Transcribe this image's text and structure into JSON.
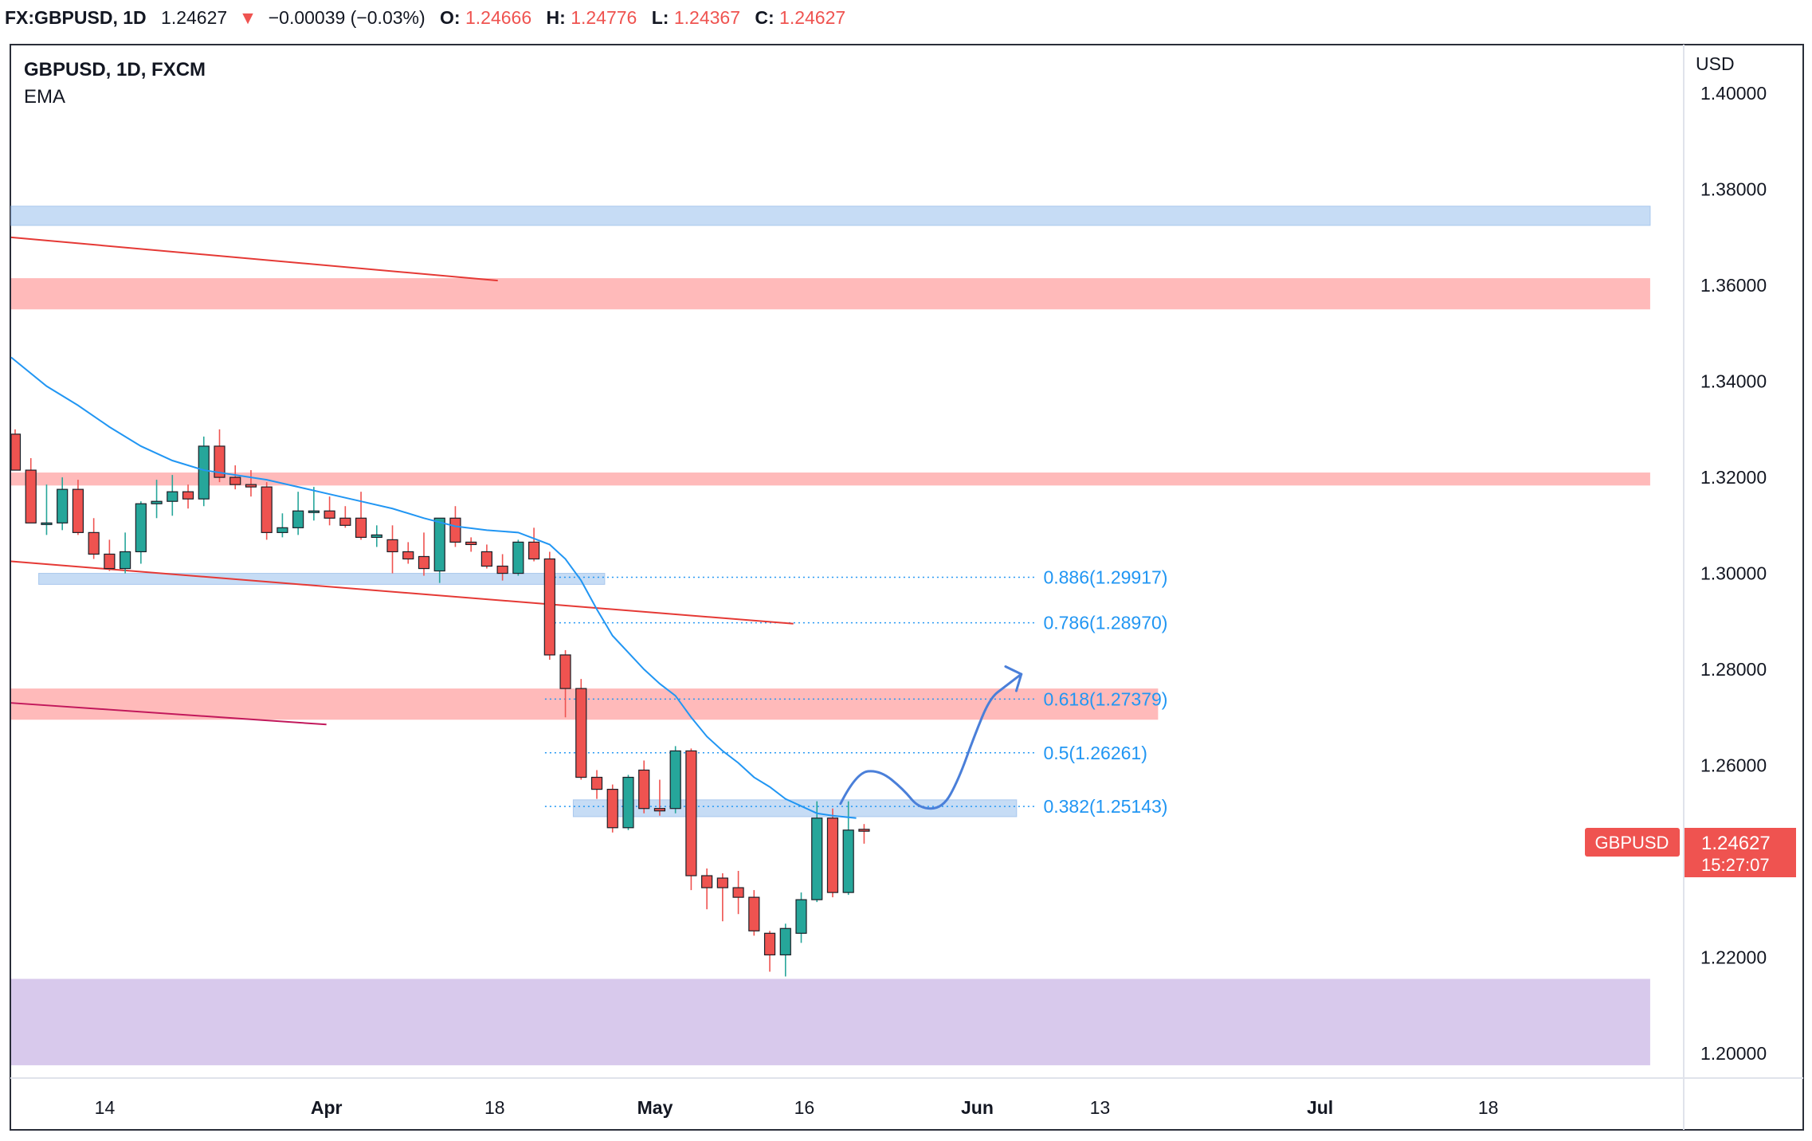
{
  "header": {
    "symbol": "FX:GBPUSD, 1D",
    "last": "1.24627",
    "change_arrow": "▼",
    "change": "−0.00039 (−0.03%)",
    "open_label": "O:",
    "open": "1.24666",
    "high_label": "H:",
    "high": "1.24776",
    "low_label": "L:",
    "low": "1.24367",
    "close_label": "C:",
    "close": "1.24627"
  },
  "legend": {
    "title": "GBPUSD, 1D, FXCM",
    "indicator": "EMA"
  },
  "price_axis": {
    "currency": "USD"
  },
  "price_tag": {
    "symbol": "GBPUSD",
    "price": "1.24627",
    "countdown": "15:27:07"
  },
  "colors": {
    "up": "#26a69a",
    "down": "#ef5350",
    "ema": "#2196f3",
    "support_zone": "#c6dcf5",
    "resistance_zone": "#ffbaba",
    "demand_zone": "#d8c9ec",
    "trendline": "#e53935",
    "trendline2": "#c2185b",
    "projection": "#4a7fd9",
    "fib": "#2196f3"
  },
  "chart_data": {
    "type": "candlestick",
    "title": "GBPUSD, 1D, FXCM",
    "ylim": [
      1.195,
      1.41
    ],
    "y_ticks": [
      "1.40000",
      "1.38000",
      "1.36000",
      "1.34000",
      "1.32000",
      "1.30000",
      "1.28000",
      "1.26000",
      "1.22000",
      "1.20000"
    ],
    "x_ticks": [
      "14",
      "Apr",
      "18",
      "May",
      "16",
      "Jun",
      "13",
      "Jul",
      "18"
    ],
    "x_tick_bar_index": [
      5.7,
      19.8,
      30.5,
      40.7,
      50.2,
      61.2,
      69.0,
      83.0,
      93.7
    ],
    "candles": [
      {
        "o": 1.329,
        "h": 1.33,
        "l": 1.3215,
        "c": 1.3215
      },
      {
        "o": 1.3215,
        "h": 1.324,
        "l": 1.3105,
        "c": 1.3105
      },
      {
        "o": 1.3105,
        "h": 1.3185,
        "l": 1.308,
        "c": 1.3105
      },
      {
        "o": 1.3105,
        "h": 1.32,
        "l": 1.309,
        "c": 1.3175
      },
      {
        "o": 1.3175,
        "h": 1.3195,
        "l": 1.308,
        "c": 1.3085
      },
      {
        "o": 1.3085,
        "h": 1.3115,
        "l": 1.303,
        "c": 1.304
      },
      {
        "o": 1.304,
        "h": 1.307,
        "l": 1.3005,
        "c": 1.301
      },
      {
        "o": 1.301,
        "h": 1.3085,
        "l": 1.3,
        "c": 1.3045
      },
      {
        "o": 1.3045,
        "h": 1.315,
        "l": 1.302,
        "c": 1.3145
      },
      {
        "o": 1.3145,
        "h": 1.3195,
        "l": 1.3115,
        "c": 1.315
      },
      {
        "o": 1.315,
        "h": 1.3205,
        "l": 1.312,
        "c": 1.317
      },
      {
        "o": 1.317,
        "h": 1.3185,
        "l": 1.3135,
        "c": 1.3155
      },
      {
        "o": 1.3155,
        "h": 1.3285,
        "l": 1.314,
        "c": 1.3265
      },
      {
        "o": 1.3265,
        "h": 1.33,
        "l": 1.319,
        "c": 1.32
      },
      {
        "o": 1.32,
        "h": 1.3225,
        "l": 1.3175,
        "c": 1.3185
      },
      {
        "o": 1.3185,
        "h": 1.3215,
        "l": 1.316,
        "c": 1.318
      },
      {
        "o": 1.318,
        "h": 1.319,
        "l": 1.307,
        "c": 1.3085
      },
      {
        "o": 1.3085,
        "h": 1.3125,
        "l": 1.3075,
        "c": 1.3095
      },
      {
        "o": 1.3095,
        "h": 1.317,
        "l": 1.308,
        "c": 1.313
      },
      {
        "o": 1.313,
        "h": 1.318,
        "l": 1.311,
        "c": 1.313
      },
      {
        "o": 1.313,
        "h": 1.316,
        "l": 1.31,
        "c": 1.3115
      },
      {
        "o": 1.3115,
        "h": 1.314,
        "l": 1.3095,
        "c": 1.31
      },
      {
        "o": 1.3115,
        "h": 1.317,
        "l": 1.307,
        "c": 1.3075
      },
      {
        "o": 1.3075,
        "h": 1.31,
        "l": 1.3055,
        "c": 1.308
      },
      {
        "o": 1.307,
        "h": 1.31,
        "l": 1.3,
        "c": 1.3045
      },
      {
        "o": 1.3045,
        "h": 1.3065,
        "l": 1.302,
        "c": 1.303
      },
      {
        "o": 1.3035,
        "h": 1.3085,
        "l": 1.2995,
        "c": 1.301
      },
      {
        "o": 1.3005,
        "h": 1.3115,
        "l": 1.298,
        "c": 1.3115
      },
      {
        "o": 1.3115,
        "h": 1.314,
        "l": 1.3055,
        "c": 1.3065
      },
      {
        "o": 1.3065,
        "h": 1.3075,
        "l": 1.3045,
        "c": 1.306
      },
      {
        "o": 1.3045,
        "h": 1.306,
        "l": 1.301,
        "c": 1.3015
      },
      {
        "o": 1.3015,
        "h": 1.304,
        "l": 1.2985,
        "c": 1.3
      },
      {
        "o": 1.3,
        "h": 1.307,
        "l": 1.2995,
        "c": 1.3065
      },
      {
        "o": 1.3065,
        "h": 1.3095,
        "l": 1.3025,
        "c": 1.303
      },
      {
        "o": 1.303,
        "h": 1.3045,
        "l": 1.282,
        "c": 1.283
      },
      {
        "o": 1.283,
        "h": 1.284,
        "l": 1.27,
        "c": 1.276
      },
      {
        "o": 1.276,
        "h": 1.278,
        "l": 1.257,
        "c": 1.2575
      },
      {
        "o": 1.2575,
        "h": 1.259,
        "l": 1.253,
        "c": 1.255
      },
      {
        "o": 1.255,
        "h": 1.256,
        "l": 1.246,
        "c": 1.247
      },
      {
        "o": 1.247,
        "h": 1.258,
        "l": 1.2465,
        "c": 1.2575
      },
      {
        "o": 1.259,
        "h": 1.261,
        "l": 1.25,
        "c": 1.251
      },
      {
        "o": 1.251,
        "h": 1.257,
        "l": 1.2495,
        "c": 1.2505
      },
      {
        "o": 1.251,
        "h": 1.264,
        "l": 1.25,
        "c": 1.263
      },
      {
        "o": 1.263,
        "h": 1.2635,
        "l": 1.234,
        "c": 1.237
      },
      {
        "o": 1.237,
        "h": 1.2385,
        "l": 1.23,
        "c": 1.2345
      },
      {
        "o": 1.2365,
        "h": 1.2375,
        "l": 1.2275,
        "c": 1.2345
      },
      {
        "o": 1.2345,
        "h": 1.238,
        "l": 1.229,
        "c": 1.2325
      },
      {
        "o": 1.2325,
        "h": 1.234,
        "l": 1.2245,
        "c": 1.2255
      },
      {
        "o": 1.225,
        "h": 1.2255,
        "l": 1.217,
        "c": 1.2205
      },
      {
        "o": 1.2205,
        "h": 1.227,
        "l": 1.216,
        "c": 1.226
      },
      {
        "o": 1.225,
        "h": 1.2335,
        "l": 1.223,
        "c": 1.232
      },
      {
        "o": 1.232,
        "h": 1.2525,
        "l": 1.2315,
        "c": 1.249
      },
      {
        "o": 1.249,
        "h": 1.251,
        "l": 1.2325,
        "c": 1.2335
      },
      {
        "o": 1.2335,
        "h": 1.2525,
        "l": 1.233,
        "c": 1.2465
      },
      {
        "o": 1.24666,
        "h": 1.24776,
        "l": 1.24367,
        "c": 1.24627
      }
    ],
    "ema": [
      [
        -0.5,
        1.345
      ],
      [
        2,
        1.339
      ],
      [
        4,
        1.335
      ],
      [
        6,
        1.3305
      ],
      [
        8,
        1.3265
      ],
      [
        10,
        1.3235
      ],
      [
        12,
        1.3215
      ],
      [
        14,
        1.3205
      ],
      [
        16,
        1.3195
      ],
      [
        18,
        1.318
      ],
      [
        20,
        1.3165
      ],
      [
        22,
        1.315
      ],
      [
        24,
        1.3135
      ],
      [
        26,
        1.3115
      ],
      [
        28,
        1.3098
      ],
      [
        30,
        1.309
      ],
      [
        32,
        1.3085
      ],
      [
        34,
        1.306
      ],
      [
        35,
        1.303
      ],
      [
        36,
        1.2985
      ],
      [
        37,
        1.2925
      ],
      [
        38,
        1.287
      ],
      [
        39,
        1.2835
      ],
      [
        40,
        1.28
      ],
      [
        41,
        1.277
      ],
      [
        42,
        1.2745
      ],
      [
        43,
        1.27
      ],
      [
        44,
        1.266
      ],
      [
        45,
        1.263
      ],
      [
        46,
        1.2605
      ],
      [
        47,
        1.2575
      ],
      [
        48,
        1.2555
      ],
      [
        49,
        1.253
      ],
      [
        50,
        1.2515
      ],
      [
        51,
        1.25
      ],
      [
        52,
        1.2495
      ],
      [
        53.5,
        1.249
      ]
    ],
    "zones": [
      {
        "kind": "support",
        "from_bar": -1,
        "to_bar": 104,
        "y1": 1.3725,
        "y2": 1.3765
      },
      {
        "kind": "resistance",
        "from_bar": -1,
        "to_bar": 104,
        "y1": 1.355,
        "y2": 1.3615
      },
      {
        "kind": "resistance",
        "from_bar": -1,
        "to_bar": 104,
        "y1": 1.3183,
        "y2": 1.321
      },
      {
        "kind": "support",
        "from_bar": 1.5,
        "to_bar": 37.5,
        "y1": 1.2977,
        "y2": 1.3
      },
      {
        "kind": "resistance",
        "from_bar": -1,
        "to_bar": 72.7,
        "y1": 1.2695,
        "y2": 1.276
      },
      {
        "kind": "support",
        "from_bar": 35.5,
        "to_bar": 63.7,
        "y1": 1.2493,
        "y2": 1.2528
      },
      {
        "kind": "demand",
        "from_bar": -1,
        "to_bar": 104,
        "y1": 1.1975,
        "y2": 1.2155
      }
    ],
    "trendlines": [
      {
        "color": "trendline",
        "x1": -1,
        "y1": 1.37,
        "x2": 30.7,
        "y2": 1.361
      },
      {
        "color": "trendline",
        "x1": -1,
        "y1": 1.3025,
        "x2": 49.5,
        "y2": 1.2895
      },
      {
        "color": "trendline2",
        "x1": -1,
        "y1": 1.273,
        "x2": 19.8,
        "y2": 1.2685
      }
    ],
    "fib_levels": [
      {
        "label": "0.886(1.29917)",
        "value": 1.29917
      },
      {
        "label": "0.786(1.28970)",
        "value": 1.2897
      },
      {
        "label": "0.618(1.27379)",
        "value": 1.27379
      },
      {
        "label": "0.5(1.26261)",
        "value": 1.26261
      },
      {
        "label": "0.382(1.25143)",
        "value": 1.25143
      }
    ],
    "fib_from_bar": 33.7,
    "fib_to_bar": 65.0,
    "projection": [
      [
        52.5,
        1.252
      ],
      [
        53.5,
        1.2585
      ],
      [
        55,
        1.259
      ],
      [
        56.5,
        1.255
      ],
      [
        57.5,
        1.251
      ],
      [
        59,
        1.251
      ],
      [
        60,
        1.257
      ],
      [
        61,
        1.266
      ],
      [
        62,
        1.274
      ],
      [
        63,
        1.2765
      ],
      [
        64,
        1.279
      ]
    ]
  }
}
